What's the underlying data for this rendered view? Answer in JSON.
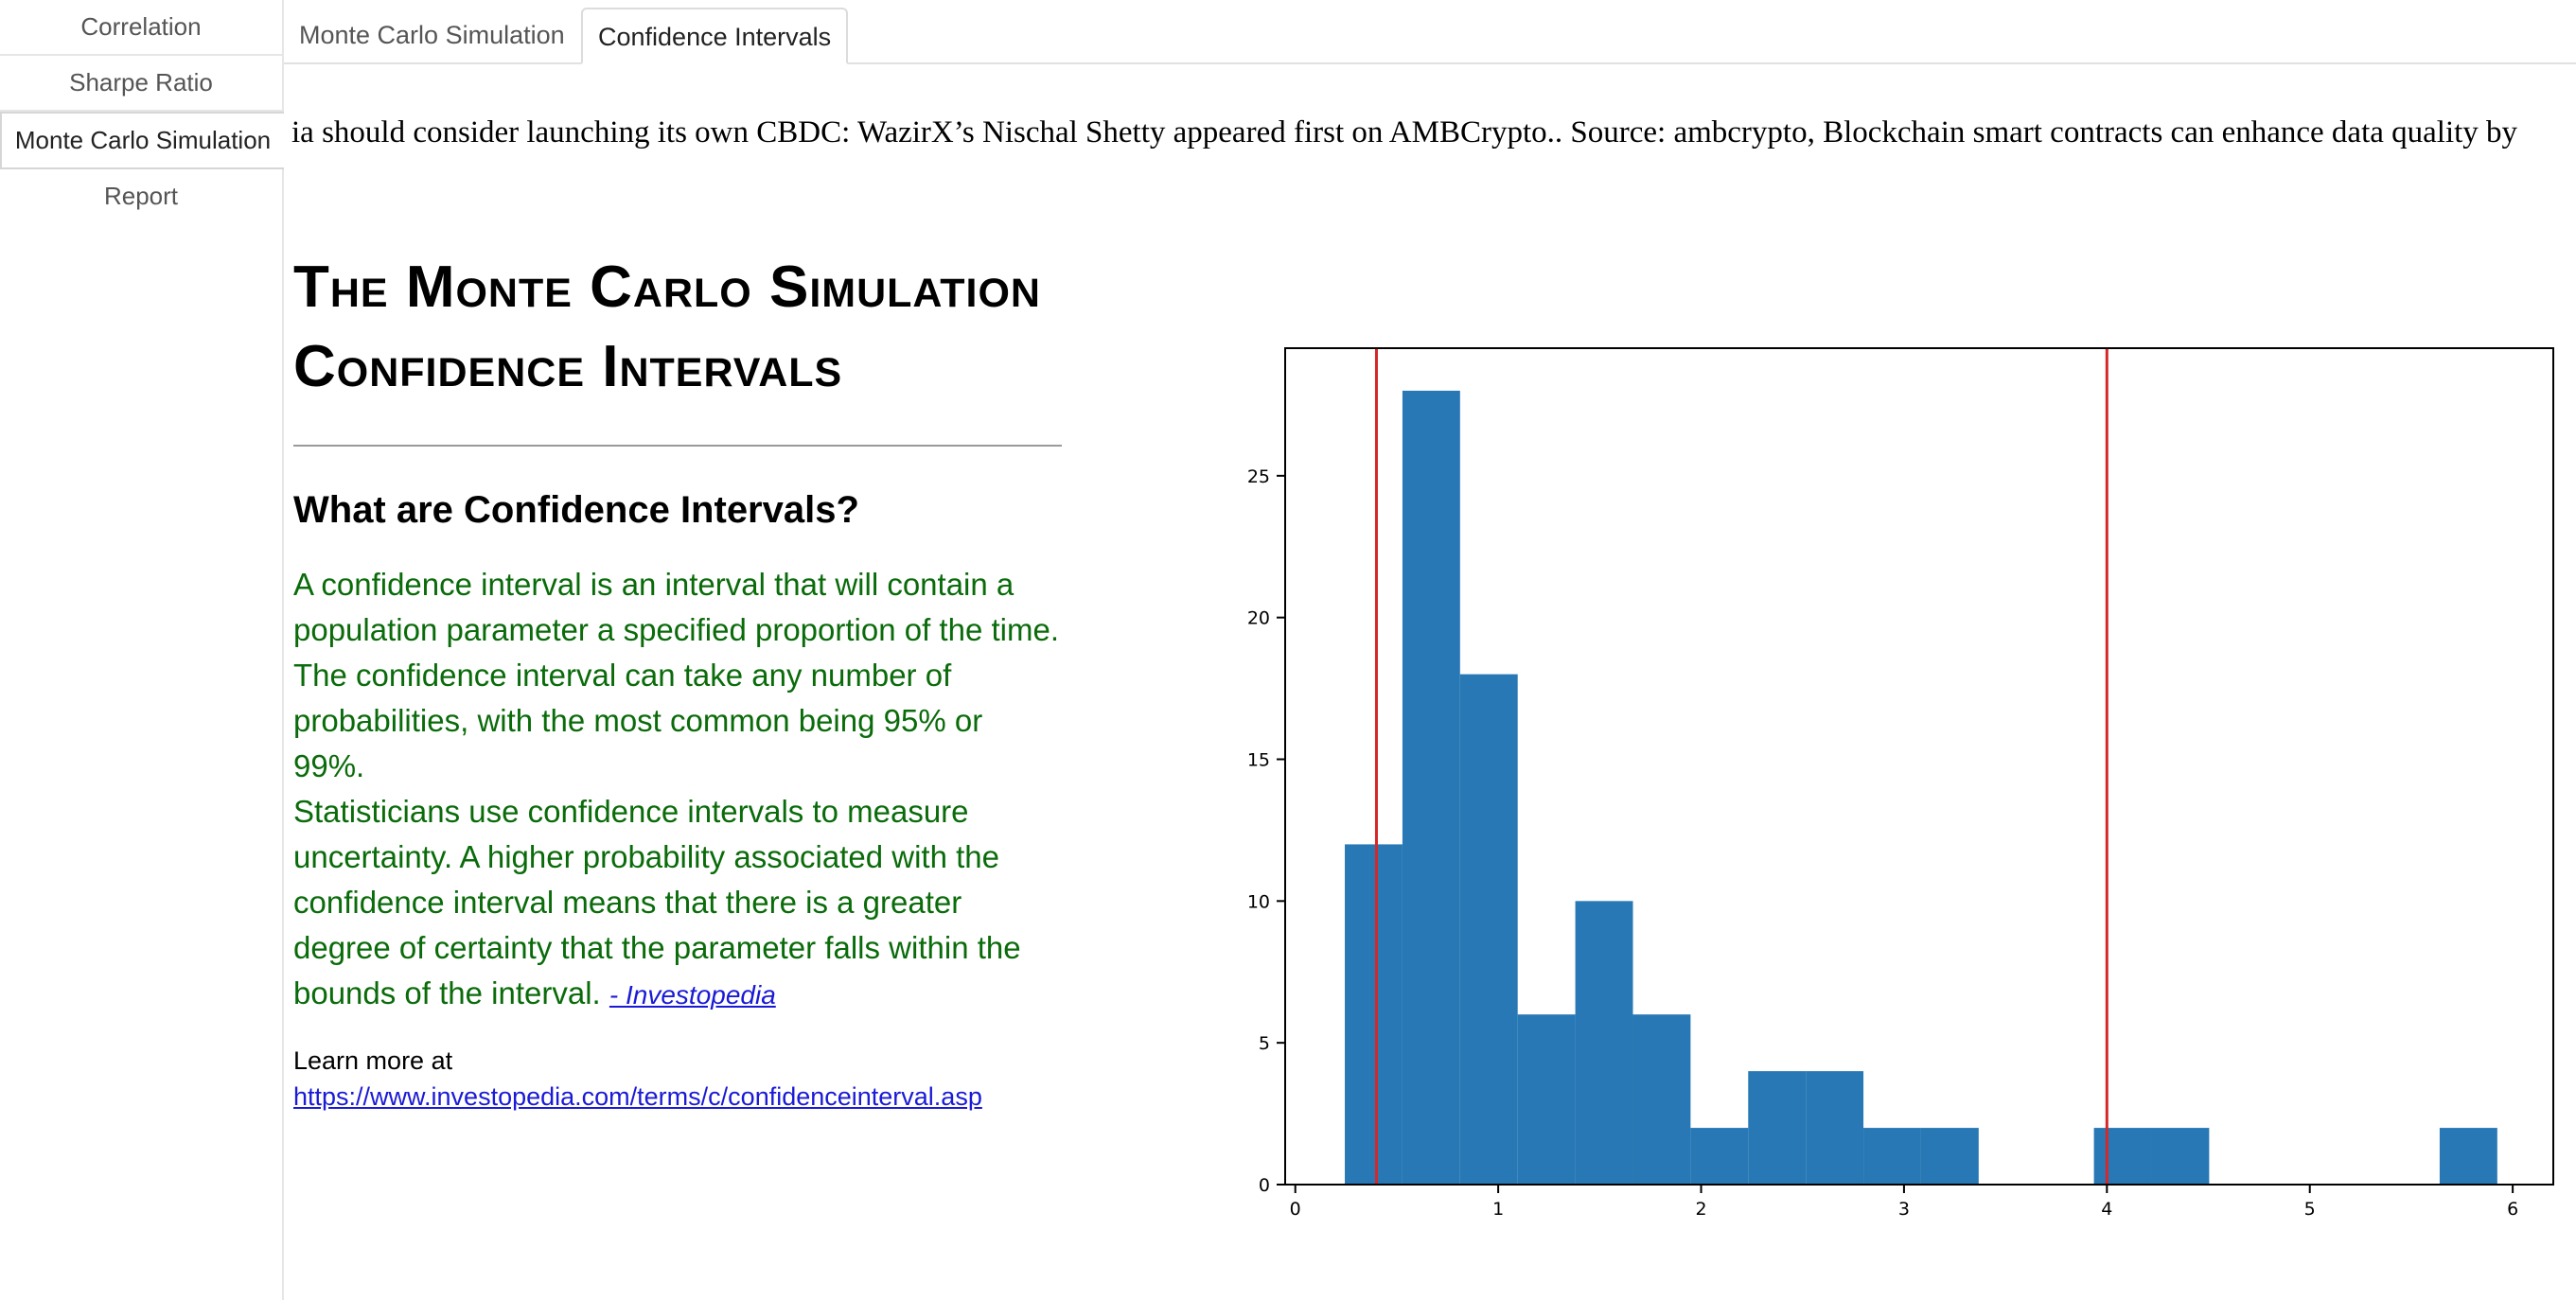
{
  "sidebar": {
    "items": [
      {
        "label": "Correlation",
        "active": false
      },
      {
        "label": "Sharpe Ratio",
        "active": false
      },
      {
        "label": "Monte Carlo Simulation",
        "active": true
      },
      {
        "label": "Report",
        "active": false
      }
    ]
  },
  "tabs": [
    {
      "label": "Monte Carlo Simulation",
      "active": false
    },
    {
      "label": "Confidence Intervals",
      "active": true
    }
  ],
  "ticker": {
    "text": "ia should consider launching its own CBDC: WazirX’s Nischal Shetty appeared first on AMBCrypto.. Source: ambcrypto,  Blockchain smart contracts can enhance data quality by"
  },
  "main": {
    "title_line1": "The Monte Carlo Simulation",
    "title_line2": "Confidence Intervals",
    "subtitle": "What are Confidence Intervals?",
    "description": "A confidence interval is an interval that will contain a population parameter a specified proportion of the time. The confidence interval can take any number of probabilities, with the most common being 95% or 99%.",
    "description2": "Statisticians use confidence intervals to measure uncertainty. A higher probability associated with the confidence interval means that there is a greater degree of certainty that the parameter falls within the bounds of the interval.",
    "source_link": "- Investopedia",
    "learn_more": "Learn more at",
    "learn_more_url": "https://www.investopedia.com/terms/c/confidenceinterval.asp"
  },
  "colors": {
    "bar": "#2878b5",
    "confidence_line": "#d62728",
    "description_text": "#0a6b0a",
    "link": "#1a1ad6"
  },
  "chart_data": {
    "type": "bar",
    "title": "",
    "xlabel": "",
    "ylabel": "",
    "xlim": [
      -0.05,
      6.2
    ],
    "ylim": [
      0,
      29.5
    ],
    "bin_width": 0.284,
    "bins": [
      {
        "x0": 0.244,
        "count": 12
      },
      {
        "x0": 0.528,
        "count": 28
      },
      {
        "x0": 0.812,
        "count": 18
      },
      {
        "x0": 1.096,
        "count": 6
      },
      {
        "x0": 1.38,
        "count": 10
      },
      {
        "x0": 1.664,
        "count": 6
      },
      {
        "x0": 1.948,
        "count": 2
      },
      {
        "x0": 2.232,
        "count": 4
      },
      {
        "x0": 2.516,
        "count": 4
      },
      {
        "x0": 2.8,
        "count": 2
      },
      {
        "x0": 3.084,
        "count": 2
      },
      {
        "x0": 3.368,
        "count": 0
      },
      {
        "x0": 3.652,
        "count": 0
      },
      {
        "x0": 3.936,
        "count": 2
      },
      {
        "x0": 4.22,
        "count": 2
      },
      {
        "x0": 4.504,
        "count": 0
      },
      {
        "x0": 4.788,
        "count": 0
      },
      {
        "x0": 5.072,
        "count": 0
      },
      {
        "x0": 5.356,
        "count": 0
      },
      {
        "x0": 5.64,
        "count": 2
      }
    ],
    "confidence_bounds": [
      0.4,
      4.0
    ],
    "xticks": [
      "0",
      "1",
      "2",
      "3",
      "4",
      "5",
      "6"
    ],
    "yticks": [
      "0",
      "5",
      "10",
      "15",
      "20",
      "25"
    ],
    "grid": false
  }
}
